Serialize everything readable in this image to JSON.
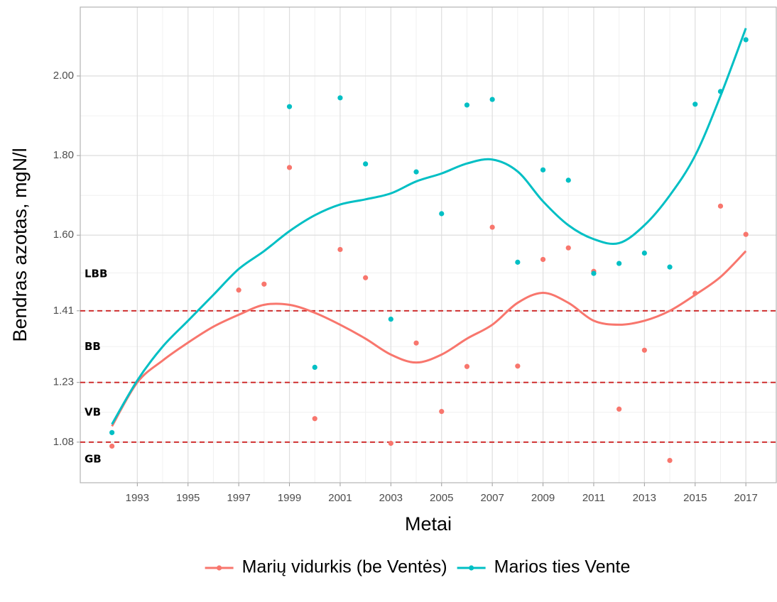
{
  "chart_data": {
    "type": "scatter",
    "x_label": "Metai",
    "y_label": "Bendras azotas, mgN/l",
    "x": [
      1992,
      1993,
      1994,
      1995,
      1996,
      1997,
      1998,
      1999,
      2000,
      2001,
      2002,
      2003,
      2004,
      2005,
      2006,
      2007,
      2008,
      2009,
      2010,
      2011,
      2012,
      2013,
      2014,
      2015,
      2016,
      2017
    ],
    "series": [
      {
        "name": "Marių vidurkis (be Ventės)",
        "color": "#F8766D",
        "values": [
          1.07,
          null,
          null,
          null,
          null,
          1.462,
          1.477,
          1.77,
          1.139,
          1.564,
          1.493,
          1.077,
          1.329,
          1.157,
          1.27,
          1.62,
          1.271,
          1.539,
          1.568,
          1.509,
          1.163,
          1.311,
          1.034,
          1.454,
          1.673,
          1.602
        ],
        "smooth": [
          1.12,
          1.23,
          1.285,
          1.33,
          1.37,
          1.4,
          1.425,
          1.425,
          1.405,
          1.375,
          1.34,
          1.3,
          1.28,
          1.3,
          1.34,
          1.375,
          1.43,
          1.455,
          1.43,
          1.385,
          1.375,
          1.385,
          1.41,
          1.45,
          1.495,
          1.56
        ]
      },
      {
        "name": "Marios ties Vente",
        "color": "#00BFC4",
        "values": [
          1.104,
          null,
          null,
          null,
          null,
          null,
          null,
          1.923,
          1.268,
          1.945,
          1.779,
          1.389,
          1.759,
          1.654,
          1.927,
          1.941,
          1.532,
          1.764,
          1.738,
          1.504,
          1.529,
          1.555,
          1.52,
          1.929,
          1.961,
          2.091
        ],
        "smooth": [
          1.125,
          1.235,
          1.32,
          1.385,
          1.45,
          1.515,
          1.56,
          1.61,
          1.65,
          1.677,
          1.69,
          1.705,
          1.735,
          1.755,
          1.78,
          1.79,
          1.76,
          1.685,
          1.625,
          1.59,
          1.58,
          1.625,
          1.7,
          1.8,
          1.95,
          2.12
        ]
      }
    ],
    "hlines": [
      1.41,
      1.23,
      1.08
    ],
    "hline_color": "#CC2222",
    "zone_labels": [
      "LBB",
      "BB",
      "VB",
      "GB"
    ],
    "xlim": [
      1990.75,
      2018.2
    ],
    "ylim": [
      0.978,
      2.173
    ],
    "xticks": [
      1993,
      1995,
      1997,
      1999,
      2001,
      2003,
      2005,
      2007,
      2009,
      2011,
      2013,
      2015,
      2017
    ],
    "yticks": [
      1.08,
      1.23,
      1.41,
      {
        "value": 1.6,
        "label": "1.60"
      },
      {
        "value": 1.8,
        "label": "1.80"
      },
      {
        "value": 2,
        "label": "2.00"
      }
    ],
    "grid": true,
    "legend": "bottom"
  }
}
